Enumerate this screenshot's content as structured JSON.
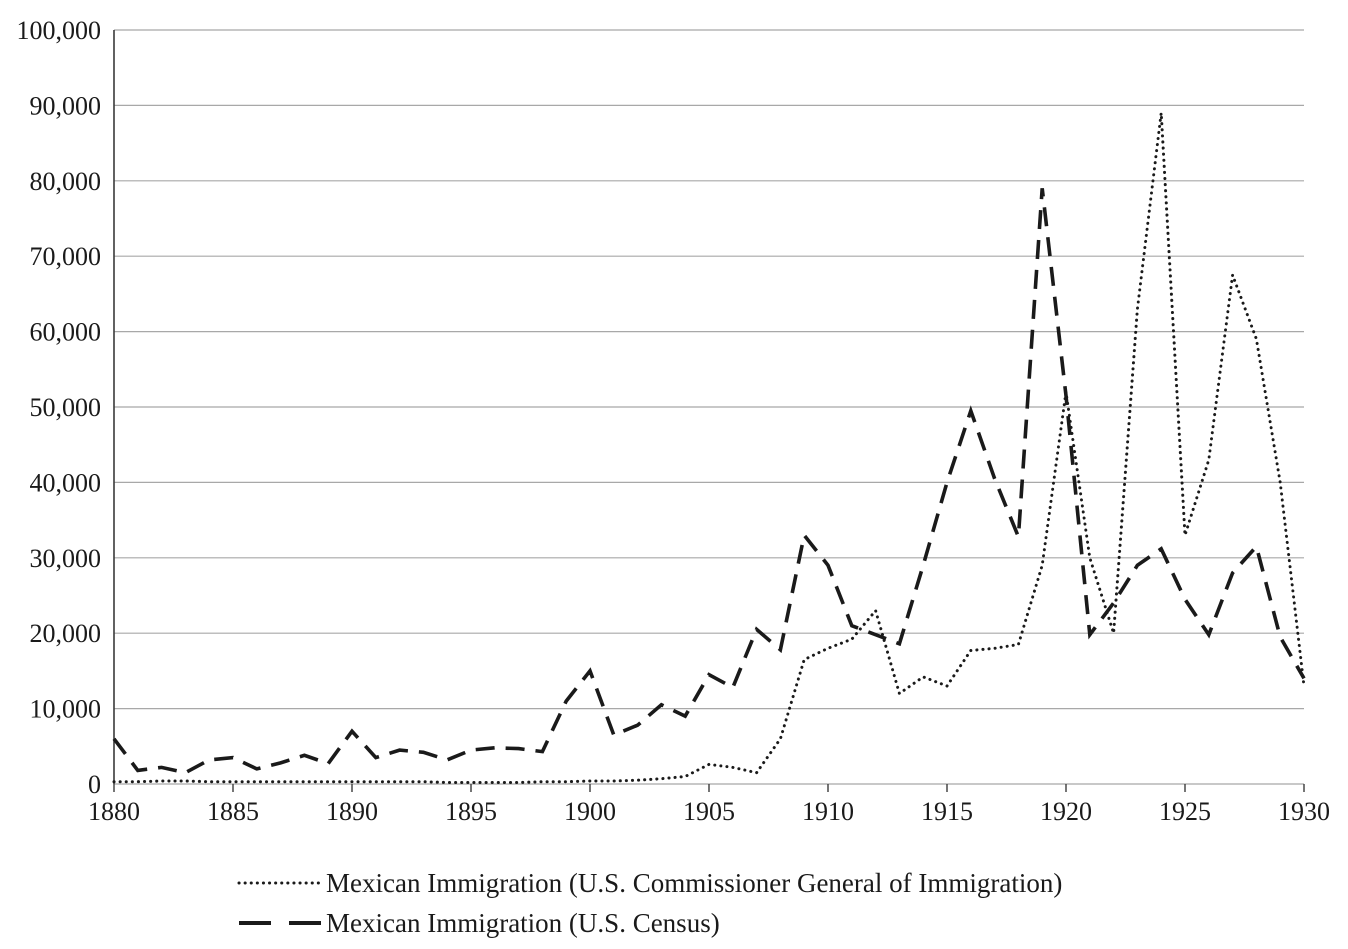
{
  "chart_data": {
    "type": "line",
    "title": "",
    "xlabel": "",
    "ylabel": "",
    "xlim": [
      1880,
      1930
    ],
    "ylim": [
      0,
      100000
    ],
    "grid": "horizontal",
    "legend_position": "bottom-left",
    "x": [
      1880,
      1881,
      1882,
      1883,
      1884,
      1885,
      1886,
      1887,
      1888,
      1889,
      1890,
      1891,
      1892,
      1893,
      1894,
      1895,
      1896,
      1897,
      1898,
      1899,
      1900,
      1901,
      1902,
      1903,
      1904,
      1905,
      1906,
      1907,
      1908,
      1909,
      1910,
      1911,
      1912,
      1913,
      1914,
      1915,
      1916,
      1917,
      1918,
      1919,
      1920,
      1921,
      1922,
      1923,
      1924,
      1925,
      1926,
      1927,
      1928,
      1929,
      1930
    ],
    "series": [
      {
        "name": "Mexican Immigration (U.S. Commissioner General of Immigration)",
        "style": "dotted",
        "values": [
          300,
          300,
          400,
          400,
          300,
          300,
          300,
          300,
          300,
          300,
          300,
          300,
          300,
          300,
          200,
          200,
          200,
          200,
          300,
          300,
          400,
          400,
          500,
          700,
          1000,
          2600,
          2200,
          1500,
          6000,
          16500,
          18000,
          19200,
          23000,
          12000,
          14200,
          13000,
          17700,
          18000,
          18500,
          29000,
          52000,
          30000,
          20000,
          63000,
          89000,
          33000,
          43000,
          67500,
          59000,
          40000,
          13000
        ]
      },
      {
        "name": "Mexican Immigration (U.S. Census)",
        "style": "dashed",
        "values": [
          6000,
          1800,
          2200,
          1500,
          3200,
          3500,
          2000,
          2800,
          3800,
          2700,
          7000,
          3500,
          4500,
          4200,
          3200,
          4500,
          4800,
          4700,
          4300,
          11000,
          15000,
          6500,
          7800,
          10500,
          9000,
          14500,
          12800,
          20500,
          17800,
          33000,
          29000,
          21000,
          19800,
          18600,
          29000,
          40000,
          49500,
          40500,
          32800,
          79000,
          51500,
          19800,
          24000,
          29000,
          31200,
          24500,
          19800,
          28000,
          31500,
          19500,
          14000
        ]
      }
    ],
    "y_ticks": [
      {
        "value": 0,
        "label": "0"
      },
      {
        "value": 10000,
        "label": "10,000"
      },
      {
        "value": 20000,
        "label": "20,000"
      },
      {
        "value": 30000,
        "label": "30,000"
      },
      {
        "value": 40000,
        "label": "40,000"
      },
      {
        "value": 50000,
        "label": "50,000"
      },
      {
        "value": 60000,
        "label": "60,000"
      },
      {
        "value": 70000,
        "label": "70,000"
      },
      {
        "value": 80000,
        "label": "80,000"
      },
      {
        "value": 90000,
        "label": "90,000"
      },
      {
        "value": 100000,
        "label": "100,000"
      }
    ],
    "x_ticks": [
      {
        "value": 1880,
        "label": "1880"
      },
      {
        "value": 1885,
        "label": "1885"
      },
      {
        "value": 1890,
        "label": "1890"
      },
      {
        "value": 1895,
        "label": "1895"
      },
      {
        "value": 1900,
        "label": "1900"
      },
      {
        "value": 1905,
        "label": "1905"
      },
      {
        "value": 1910,
        "label": "1910"
      },
      {
        "value": 1915,
        "label": "1915"
      },
      {
        "value": 1920,
        "label": "1920"
      },
      {
        "value": 1925,
        "label": "1925"
      },
      {
        "value": 1930,
        "label": "1930"
      }
    ]
  },
  "colors": {
    "series_line": "#1a1a1a",
    "gridline": "#a8a8a8",
    "axis_line": "#3a3a3a",
    "text": "#1a1a1a",
    "background": "#ffffff"
  }
}
